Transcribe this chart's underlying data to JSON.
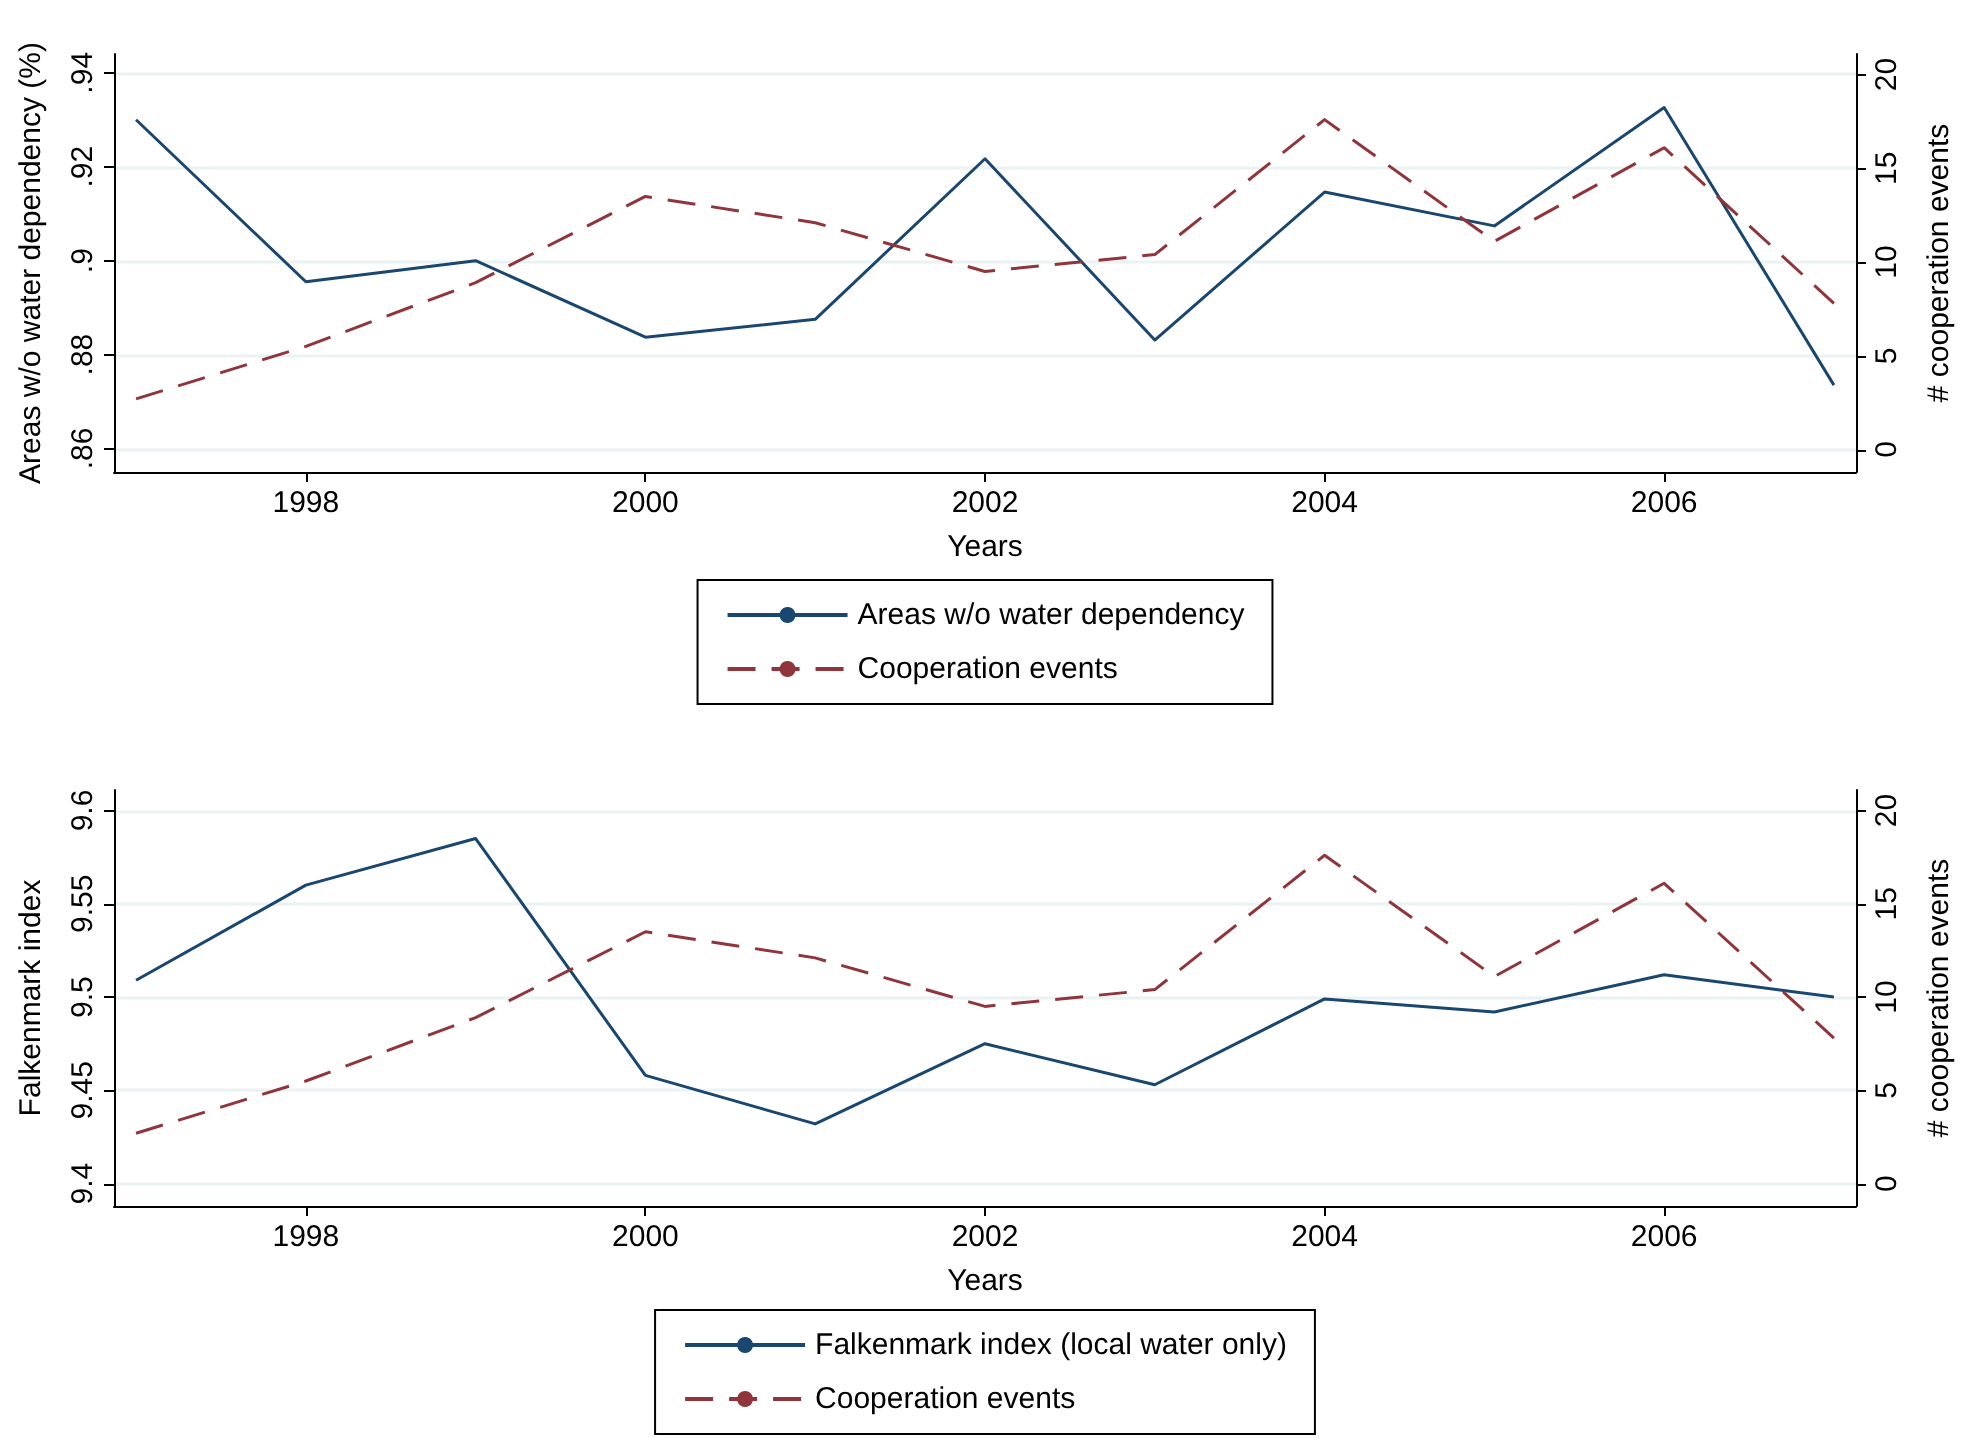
{
  "chart_data": [
    {
      "type": "line",
      "x": [
        1997,
        1998,
        1999,
        2000,
        2001,
        2002,
        2003,
        2004,
        2005,
        2006,
        2007
      ],
      "xlim": [
        1996.87,
        2007.13
      ],
      "xticks": [
        1998,
        2000,
        2002,
        2004,
        2006
      ],
      "xlabel": "Years",
      "ylabel": "Areas w/o water dependency (%)",
      "ylim": [
        0.855,
        0.944
      ],
      "yticks": [
        {
          "value": 0.86,
          "label": ".86"
        },
        {
          "value": 0.88,
          "label": ".88"
        },
        {
          "value": 0.9,
          "label": ".9"
        },
        {
          "value": 0.92,
          "label": ".92"
        },
        {
          "value": 0.94,
          "label": ".94"
        }
      ],
      "y2label": "# cooperation events",
      "y2lim": [
        -1.2,
        21.1
      ],
      "y2ticks": [
        0,
        5,
        10,
        15,
        20
      ],
      "grid": "y",
      "legend": "bottom",
      "series": [
        {
          "name": "Areas w/o water dependency",
          "color": "#1a476f",
          "line_style": "solid",
          "values": [
            0.93,
            0.8955,
            0.9,
            0.8837,
            0.8875,
            0.9217,
            0.8831,
            0.9146,
            0.9074,
            0.9326,
            0.8735
          ]
        },
        {
          "name": "Cooperation events",
          "color": "#90353b",
          "line_style": "dashed",
          "axis": "y2",
          "values": [
            2.7,
            5.5,
            8.9,
            13.5,
            12.1,
            9.5,
            10.4,
            17.6,
            11.1,
            16.1,
            7.8
          ]
        }
      ]
    },
    {
      "type": "line",
      "x": [
        1997,
        1998,
        1999,
        2000,
        2001,
        2002,
        2003,
        2004,
        2005,
        2006,
        2007
      ],
      "xlim": [
        1996.87,
        2007.13
      ],
      "xticks": [
        1998,
        2000,
        2002,
        2004,
        2006
      ],
      "xlabel": "Years",
      "ylabel": "Falkenmark index",
      "ylim": [
        9.388,
        9.611
      ],
      "yticks": [
        9.4,
        9.45,
        9.5,
        9.55,
        9.6
      ],
      "y2label": "# cooperation events",
      "y2lim": [
        -1.2,
        21.1
      ],
      "y2ticks": [
        0,
        5,
        10,
        15,
        20
      ],
      "grid": "y",
      "legend": "bottom",
      "series": [
        {
          "name": "Falkenmark index (local water only)",
          "color": "#1a476f",
          "line_style": "solid",
          "values": [
            9.509,
            9.56,
            9.585,
            9.458,
            9.432,
            9.475,
            9.453,
            9.499,
            9.492,
            9.512,
            9.5
          ]
        },
        {
          "name": "Cooperation events",
          "color": "#90353b",
          "line_style": "dashed",
          "axis": "y2",
          "values": [
            2.7,
            5.5,
            8.9,
            13.5,
            12.1,
            9.5,
            10.4,
            17.6,
            11.1,
            16.1,
            7.8
          ]
        }
      ]
    }
  ]
}
